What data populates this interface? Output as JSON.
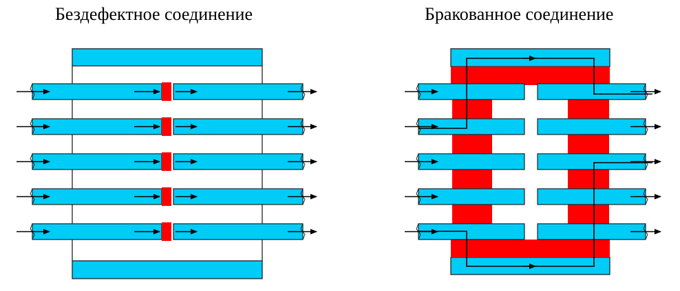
{
  "diagram": {
    "left": {
      "title": "Бездефектное соединение"
    },
    "right": {
      "title": "Бракованное соединение"
    },
    "colors": {
      "bar_fill": "#00ccf8",
      "defect_fill": "#ff0000",
      "outline": "#222222",
      "arrow": "#000000"
    }
  }
}
